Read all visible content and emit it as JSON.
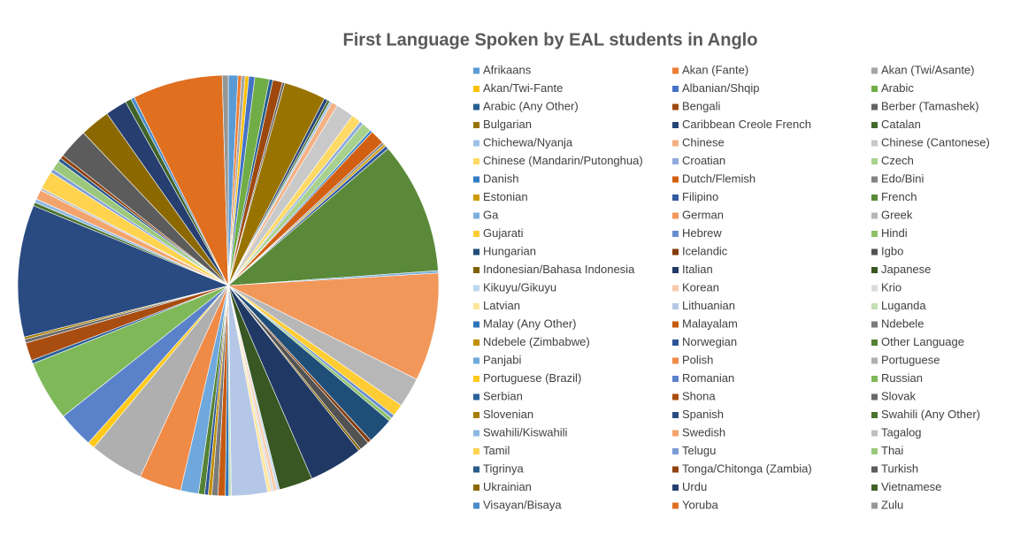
{
  "chart_data": {
    "type": "pie",
    "title": "First Language Spoken by EAL students in Anglo",
    "categories": [
      "Afrikaans",
      "Akan (Fante)",
      "Akan (Twi/Asante)",
      "Akan/Twi-Fante",
      "Albanian/Shqip",
      "Arabic",
      "Arabic (Any Other)",
      "Bengali",
      "Berber (Tamashek)",
      "Bulgarian",
      "Caribbean Creole French",
      "Catalan",
      "Chichewa/Nyanja",
      "Chinese",
      "Chinese (Cantonese)",
      "Chinese (Mandarin/Putonghua)",
      "Croatian",
      "Czech",
      "Danish",
      "Dutch/Flemish",
      "Edo/Bini",
      "Estonian",
      "Filipino",
      "French",
      "Ga",
      "German",
      "Greek",
      "Gujarati",
      "Hebrew",
      "Hindi",
      "Hungarian",
      "Icelandic",
      "Igbo",
      "Indonesian/Bahasa Indonesia",
      "Italian",
      "Japanese",
      "Kikuyu/Gikuyu",
      "Korean",
      "Krio",
      "Latvian",
      "Lithuanian",
      "Luganda",
      "Malay (Any Other)",
      "Malayalam",
      "Ndebele",
      "Ndebele (Zimbabwe)",
      "Norwegian",
      "Other Language",
      "Panjabi",
      "Polish",
      "Portuguese",
      "Portuguese (Brazil)",
      "Romanian",
      "Russian",
      "Serbian",
      "Shona",
      "Slovak",
      "Slovenian",
      "Spanish",
      "Swahili (Any Other)",
      "Swahili/Kiswahili",
      "Swedish",
      "Tagalog",
      "Tamil",
      "Telugu",
      "Thai",
      "Tigrinya",
      "Tonga/Chitonga (Zambia)",
      "Turkish",
      "Ukrainian",
      "Urdu",
      "Vietnamese",
      "Visayan/Bisaya",
      "Yoruba",
      "Zulu"
    ],
    "values": [
      0.8,
      0.3,
      0.3,
      0.3,
      0.5,
      1.2,
      0.3,
      0.8,
      0.2,
      3.5,
      0.3,
      0.2,
      0.2,
      0.5,
      1.5,
      0.8,
      0.3,
      0.8,
      0.2,
      1.2,
      0.2,
      0.2,
      0.3,
      11,
      0.2,
      9,
      2.5,
      1,
      0.3,
      0.3,
      2.2,
      0.3,
      0.8,
      0.2,
      4.5,
      2.8,
      0.2,
      0.3,
      0.2,
      0.3,
      3,
      0.2,
      0.3,
      0.6,
      0.5,
      0.3,
      0.3,
      0.5,
      1.5,
      3.5,
      4.5,
      0.6,
      3,
      5,
      0.3,
      1.5,
      0.3,
      0.2,
      11,
      0.3,
      0.3,
      0.8,
      0.2,
      1.5,
      0.3,
      0.8,
      0.3,
      0.3,
      2.5,
      2.5,
      1.8,
      0.5,
      0.3,
      7.5,
      0.5
    ],
    "colors": [
      "#5b9bd5",
      "#ed7d31",
      "#a5a5a5",
      "#ffc000",
      "#4472c4",
      "#70ad47",
      "#255e91",
      "#9e480e",
      "#636363",
      "#997300",
      "#264478",
      "#43682b",
      "#9dc3e6",
      "#f4b183",
      "#c9c9c9",
      "#ffd966",
      "#8faadc",
      "#a9d18e",
      "#327dc2",
      "#d26012",
      "#848484",
      "#cc9a00",
      "#335aa1",
      "#5a8a39",
      "#7cafdd",
      "#f1975a",
      "#b7b7b7",
      "#ffcd33",
      "#698ed0",
      "#8cc168",
      "#1f4e79",
      "#843c0c",
      "#525252",
      "#7f6000",
      "#203864",
      "#385723",
      "#bdd7ee",
      "#f8cbad",
      "#dbdbdb",
      "#ffe699",
      "#b4c7e7",
      "#c5e0b4",
      "#2e75b6",
      "#c55a11",
      "#7b7b7b",
      "#bf9000",
      "#2f5597",
      "#548235",
      "#6fa8dc",
      "#ef8a47",
      "#afafaf",
      "#ffc91a",
      "#5a82ca",
      "#7fb858",
      "#2a6099",
      "#a84c10",
      "#6a6a6a",
      "#a67d00",
      "#2a4a82",
      "#4a7330",
      "#8db8e2",
      "#f3a46c",
      "#c0c0c0",
      "#ffd34d",
      "#7c9cd6",
      "#9bc87b",
      "#285a8c",
      "#8f4210",
      "#5c5c5c",
      "#8c6900",
      "#263f70",
      "#406329",
      "#4a8bc9",
      "#e06f20",
      "#969696"
    ]
  }
}
